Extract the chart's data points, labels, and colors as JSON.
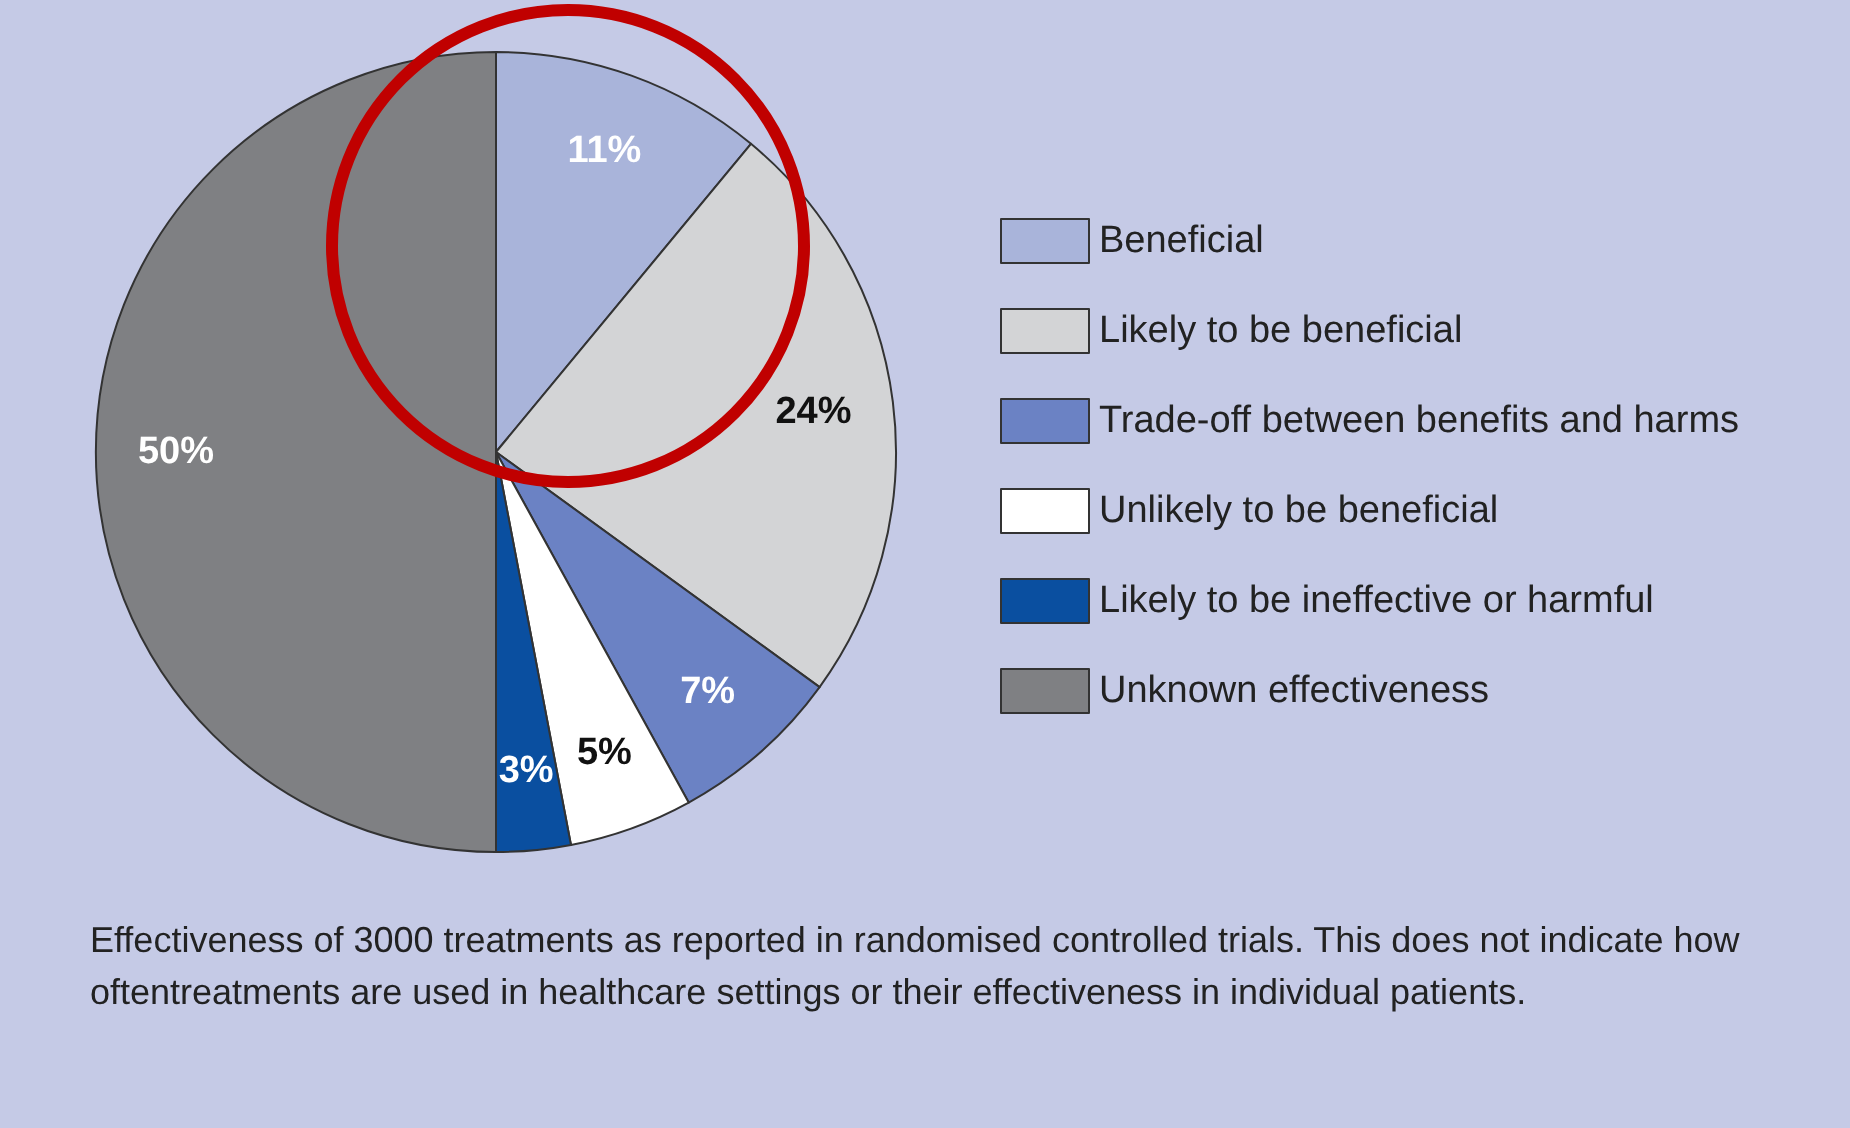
{
  "chart_data": {
    "type": "pie",
    "categories": [
      "Beneficial",
      "Likely to be beneficial",
      "Trade-off between benefits and harms",
      "Unlikely to be beneficial",
      "Likely to be ineffective or harmful",
      "Unknown effectiveness"
    ],
    "values": [
      11,
      24,
      7,
      5,
      3,
      50
    ],
    "colors": [
      "#a9b4da",
      "#d3d4d6",
      "#6b82c4",
      "#ffffff",
      "#0a4fa0",
      "#7f8083"
    ],
    "value_labels": [
      "11%",
      "24%",
      "7%",
      "5%",
      "3%",
      "50%"
    ],
    "legend": "right",
    "annotations": [
      "Effectiveness of 3000 treatments as reported in randomised controlled trials. This does not indicate how oftentreatments are used in healthcare settings or their effectiveness in individual patients."
    ]
  }
}
